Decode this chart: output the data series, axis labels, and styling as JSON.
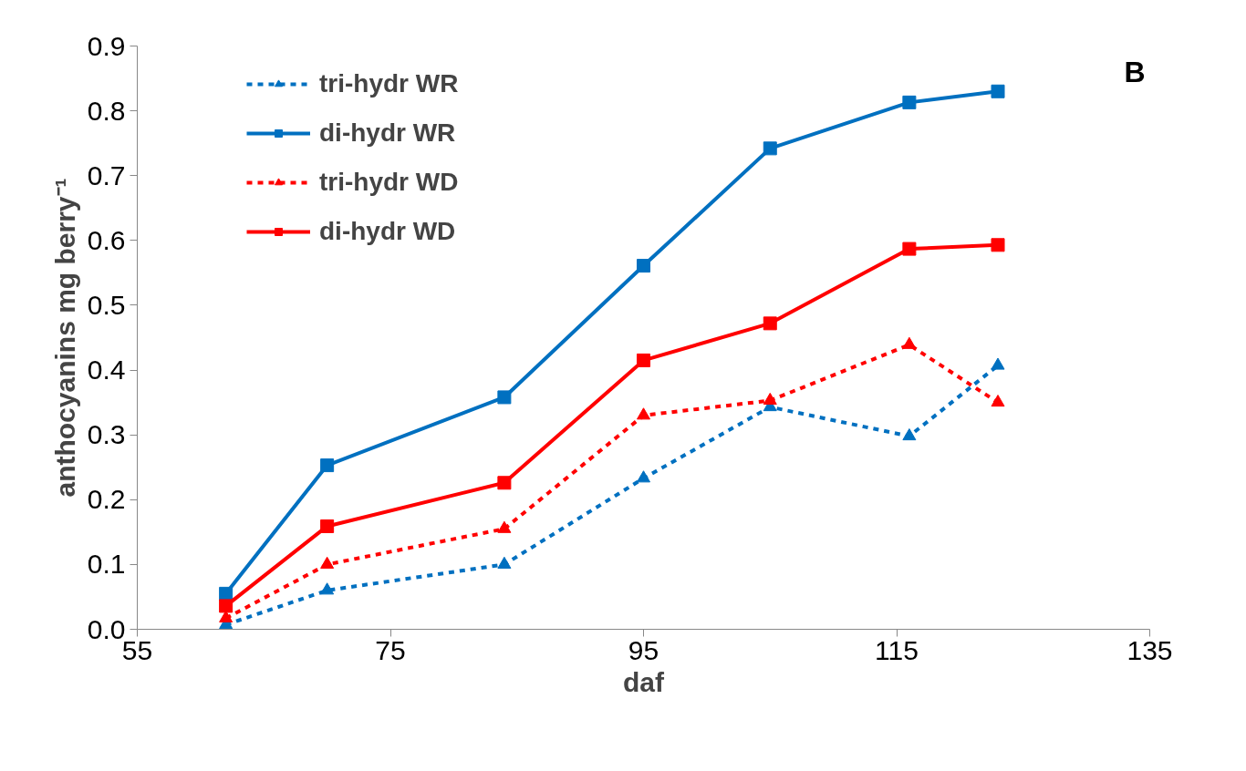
{
  "chart_data": {
    "type": "line",
    "xlabel": "daf",
    "ylabel": "anthocyanins mg berry⁻¹",
    "x": [
      62,
      70,
      84,
      95,
      105,
      116,
      123
    ],
    "series": [
      {
        "name": "tri-hydr WR",
        "color": "#0070c0",
        "marker": "triangle",
        "line_style": "dashed",
        "values": [
          0.007,
          0.06,
          0.1,
          0.233,
          0.343,
          0.298,
          0.407
        ]
      },
      {
        "name": "di-hydr WR",
        "color": "#0070c0",
        "marker": "square",
        "line_style": "solid",
        "values": [
          0.055,
          0.253,
          0.358,
          0.561,
          0.742,
          0.813,
          0.83
        ]
      },
      {
        "name": "tri-hydr WD",
        "color": "#ff0000",
        "marker": "triangle",
        "line_style": "dashed",
        "values": [
          0.017,
          0.1,
          0.155,
          0.33,
          0.353,
          0.439,
          0.35
        ]
      },
      {
        "name": "di-hydr WD",
        "color": "#ff0000",
        "marker": "square",
        "line_style": "solid",
        "values": [
          0.036,
          0.159,
          0.226,
          0.415,
          0.472,
          0.587,
          0.593
        ]
      }
    ],
    "xlim": [
      55,
      135
    ],
    "xticks": [
      55,
      75,
      95,
      115,
      135
    ],
    "ylim": [
      0,
      0.9
    ],
    "yticks": [
      {
        "value": 0,
        "label": "0.0"
      },
      0.1,
      0.2,
      0.3,
      0.4,
      0.5,
      0.6,
      0.7,
      0.8,
      0.9
    ],
    "grid": false,
    "legend": "top left",
    "annotations": [
      "B"
    ]
  }
}
